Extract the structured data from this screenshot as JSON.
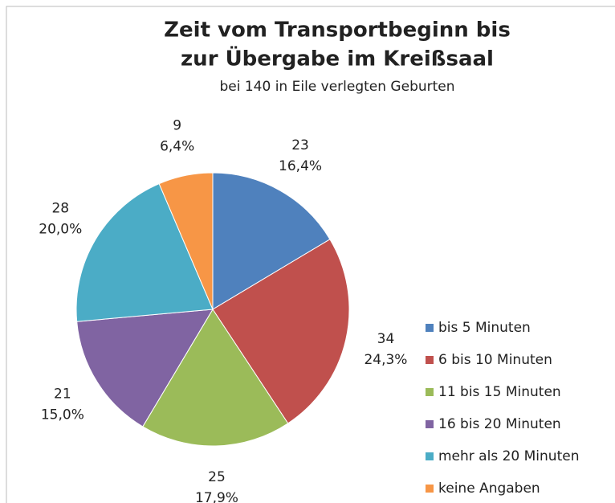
{
  "chart_data": {
    "type": "pie",
    "title": "Zeit vom Transportbeginn bis",
    "title_line2": "zur Übergabe im Kreißsaal",
    "subtitle": "bei 140 in Eile verlegten Geburten",
    "categories": [
      "bis 5 Minuten",
      "6 bis 10 Minuten",
      "11 bis 15 Minuten",
      "16 bis 20 Minuten",
      "mehr als 20 Minuten",
      "keine Angaben"
    ],
    "values": [
      23,
      34,
      25,
      21,
      28,
      9
    ],
    "percent_labels": [
      "16,4%",
      "24,3%",
      "17,9%",
      "15,0%",
      "20,0%",
      "6,4%"
    ],
    "colors": [
      "#4f81bd",
      "#c0504d",
      "#9bbb59",
      "#8064a2",
      "#4bacc6",
      "#f79646"
    ],
    "legend": "right"
  }
}
